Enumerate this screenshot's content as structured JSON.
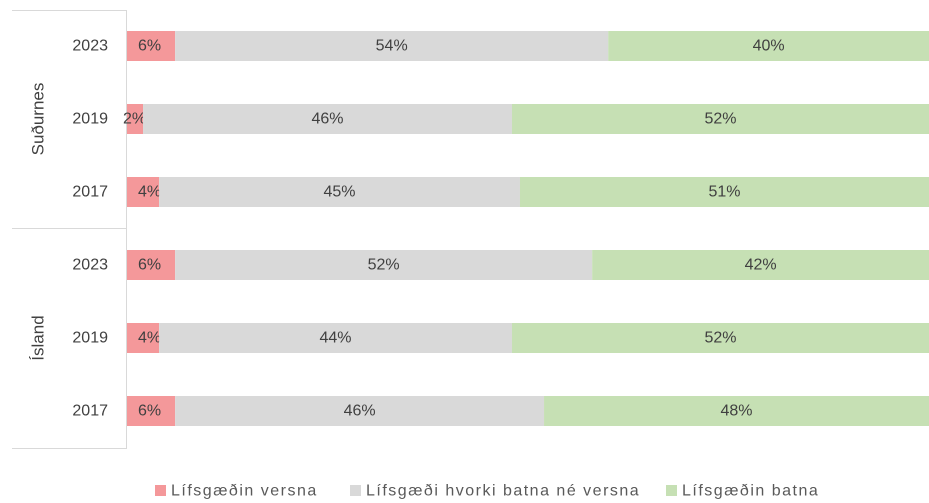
{
  "chart_data": {
    "type": "bar",
    "orientation": "horizontal",
    "stacked": "percent",
    "title": "",
    "xlabel": "",
    "ylabel": "",
    "grid": false,
    "legend_position": "bottom",
    "groups": [
      {
        "name": "Suðurnes",
        "rows": [
          {
            "category": "2023",
            "values": [
              6,
              54,
              40
            ],
            "labels": [
              "6%",
              "54%",
              "40%"
            ]
          },
          {
            "category": "2019",
            "values": [
              2,
              46,
              52
            ],
            "labels": [
              "2%",
              "46%",
              "52%"
            ]
          },
          {
            "category": "2017",
            "values": [
              4,
              45,
              51
            ],
            "labels": [
              "4%",
              "45%",
              "51%"
            ]
          }
        ]
      },
      {
        "name": "Ísland",
        "rows": [
          {
            "category": "2023",
            "values": [
              6,
              52,
              42
            ],
            "labels": [
              "6%",
              "52%",
              "42%"
            ]
          },
          {
            "category": "2019",
            "values": [
              4,
              44,
              52
            ],
            "labels": [
              "4%",
              "44%",
              "52%"
            ]
          },
          {
            "category": "2017",
            "values": [
              6,
              46,
              48
            ],
            "labels": [
              "6%",
              "46%",
              "48%"
            ]
          }
        ]
      }
    ],
    "series": [
      {
        "name": "Lífsgæðin versna",
        "color": "#f4989a"
      },
      {
        "name": "Lífsgæði hvorki batna né versna",
        "color": "#d9d9d9"
      },
      {
        "name": "Lífsgæðin batna",
        "color": "#c6e0b4"
      }
    ]
  }
}
